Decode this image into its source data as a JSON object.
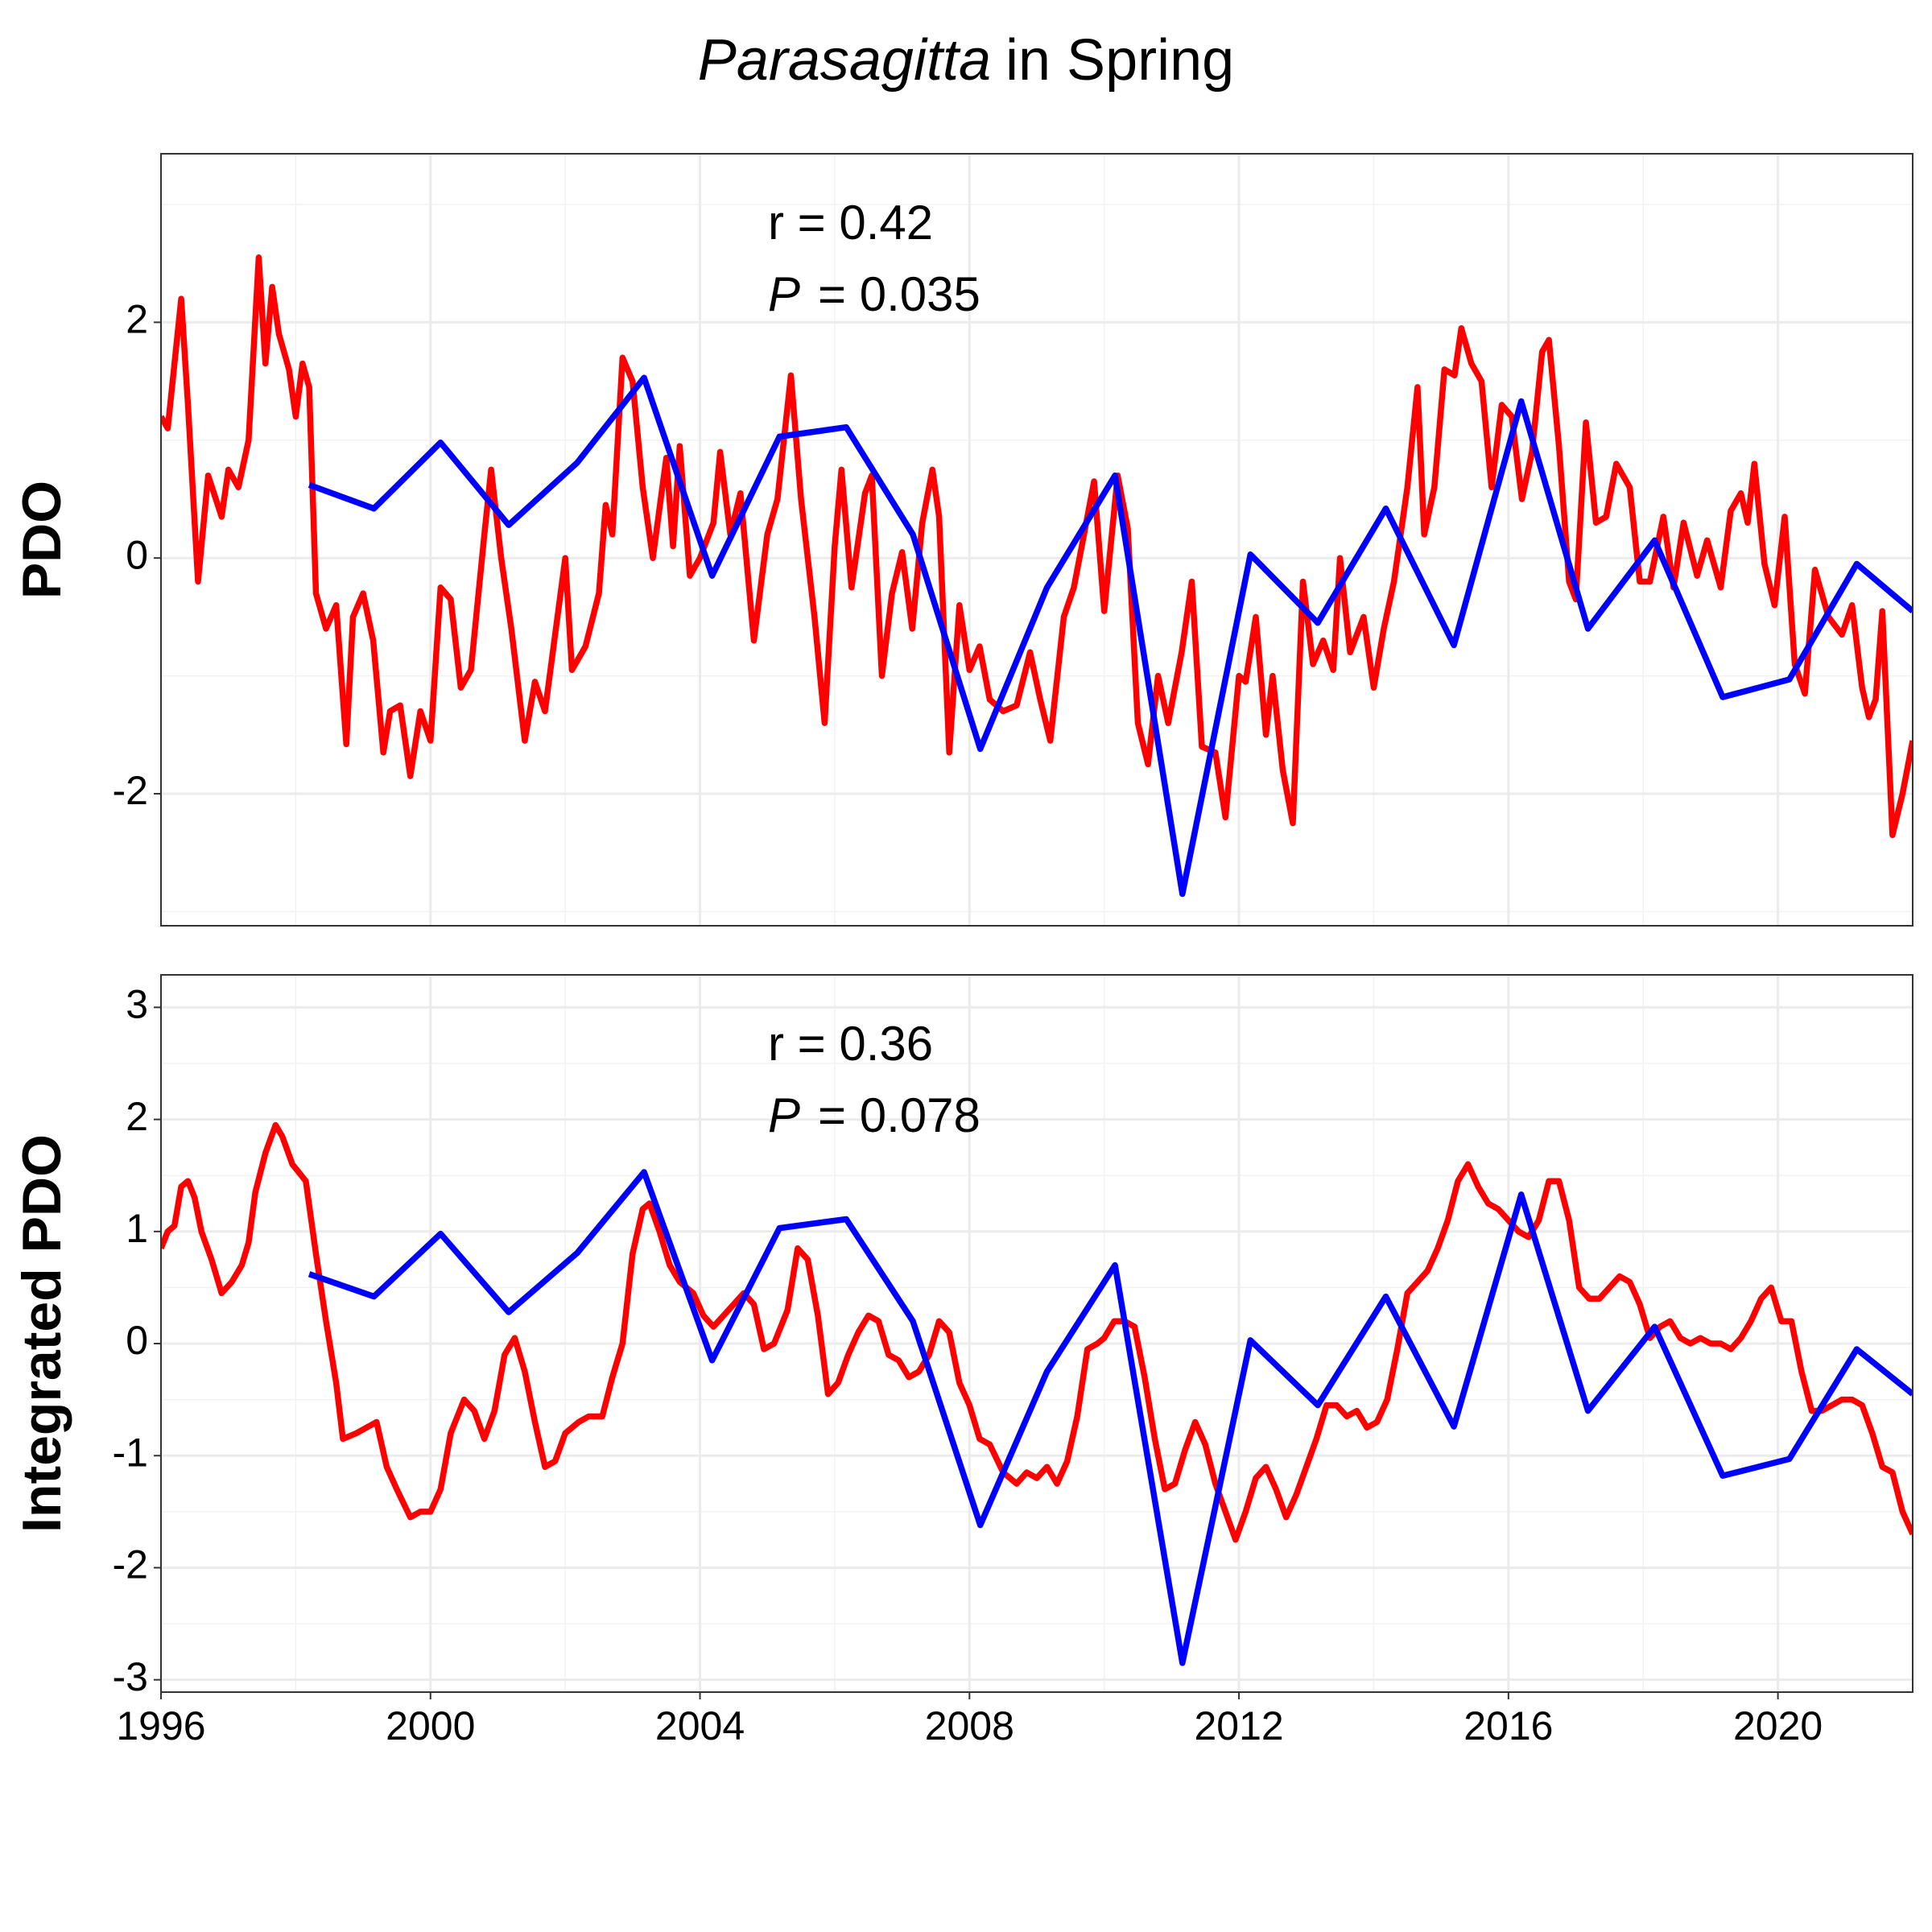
{
  "title": {
    "italic": "Parasagitta",
    "text": "in Spring"
  },
  "chart_data": [
    {
      "type": "line",
      "ylabel": "PDO",
      "xlim": [
        1996,
        2022
      ],
      "xticks": [
        1996,
        2000,
        2004,
        2008,
        2012,
        2016,
        2020
      ],
      "ylim": [
        -3.12,
        3.43
      ],
      "yticks": [
        -2,
        0,
        2
      ],
      "grid": true,
      "annotations": [
        {
          "text": "r = 0.42"
        },
        {
          "italic": "P",
          "text": "= 0.035"
        }
      ],
      "series": [
        {
          "color": "#ff0000",
          "x": [
            1996.0,
            1996.1,
            1996.3,
            1996.4,
            1996.55,
            1996.7,
            1996.9,
            1997.0,
            1997.15,
            1997.3,
            1997.45,
            1997.55,
            1997.65,
            1997.75,
            1997.9,
            1998.0,
            1998.1,
            1998.2,
            1998.3,
            1998.45,
            1998.6,
            1998.75,
            1998.85,
            1999.0,
            1999.15,
            1999.3,
            1999.4,
            1999.55,
            1999.7,
            1999.85,
            2000.0,
            2000.15,
            2000.3,
            2000.45,
            2000.6,
            2000.8,
            2000.9,
            2001.05,
            2001.2,
            2001.4,
            2001.55,
            2001.7,
            2001.85,
            2002.0,
            2002.1,
            2002.3,
            2002.5,
            2002.6,
            2002.7,
            2002.85,
            2003.0,
            2003.15,
            2003.3,
            2003.5,
            2003.6,
            2003.7,
            2003.85,
            2004.0,
            2004.2,
            2004.3,
            2004.45,
            2004.6,
            2004.8,
            2005.0,
            2005.15,
            2005.35,
            2005.5,
            2005.7,
            2005.85,
            2006.0,
            2006.1,
            2006.25,
            2006.45,
            2006.55,
            2006.7,
            2006.85,
            2007.0,
            2007.15,
            2007.3,
            2007.45,
            2007.55,
            2007.7,
            2007.85,
            2008.0,
            2008.15,
            2008.3,
            2008.5,
            2008.7,
            2008.9,
            2009.05,
            2009.2,
            2009.4,
            2009.55,
            2009.7,
            2009.85,
            2010.0,
            2010.2,
            2010.35,
            2010.5,
            2010.65,
            2010.8,
            2010.95,
            2011.15,
            2011.3,
            2011.45,
            2011.65,
            2011.8,
            2012.0,
            2012.1,
            2012.25,
            2012.4,
            2012.5,
            2012.65,
            2012.8,
            2012.95,
            2013.1,
            2013.25,
            2013.4,
            2013.5,
            2013.65,
            2013.85,
            2014.0,
            2014.15,
            2014.3,
            2014.5,
            2014.65,
            2014.75,
            2014.9,
            2015.05,
            2015.2,
            2015.3,
            2015.45,
            2015.6,
            2015.75,
            2015.9,
            2016.05,
            2016.2,
            2016.35,
            2016.5,
            2016.6,
            2016.75,
            2016.9,
            2017.0,
            2017.15,
            2017.3,
            2017.45,
            2017.6,
            2017.8,
            2017.95,
            2018.1,
            2018.3,
            2018.45,
            2018.6,
            2018.8,
            2018.95,
            2019.15,
            2019.3,
            2019.45,
            2019.55,
            2019.65,
            2019.8,
            2019.95,
            2020.1,
            2020.25,
            2020.4,
            2020.55,
            2020.75,
            2020.95,
            2021.1,
            2021.25,
            2021.35,
            2021.45,
            2021.55,
            2021.7,
            2021.85,
            2022.0
          ],
          "values": [
            1.2,
            1.1,
            2.2,
            1.3,
            -0.2,
            0.7,
            0.35,
            0.75,
            0.6,
            1.0,
            2.55,
            1.65,
            2.3,
            1.9,
            1.6,
            1.2,
            1.65,
            1.45,
            -0.3,
            -0.6,
            -0.4,
            -1.58,
            -0.5,
            -0.3,
            -0.7,
            -1.65,
            -1.3,
            -1.25,
            -1.85,
            -1.3,
            -1.55,
            -0.25,
            -0.35,
            -1.1,
            -0.95,
            0.2,
            0.75,
            0.0,
            -0.6,
            -1.55,
            -1.05,
            -1.3,
            -0.65,
            0.0,
            -0.95,
            -0.75,
            -0.3,
            0.45,
            0.2,
            1.7,
            1.5,
            0.6,
            0.0,
            0.85,
            0.1,
            0.95,
            -0.15,
            0.0,
            0.3,
            0.9,
            0.2,
            0.55,
            -0.7,
            0.2,
            0.5,
            1.55,
            0.5,
            -0.5,
            -1.4,
            0.1,
            0.75,
            -0.25,
            0.55,
            0.7,
            -1.0,
            -0.3,
            0.05,
            -0.6,
            0.3,
            0.75,
            0.35,
            -1.65,
            -0.4,
            -0.95,
            -0.75,
            -1.2,
            -1.3,
            -1.25,
            -0.8,
            -1.2,
            -1.55,
            -0.5,
            -0.25,
            0.2,
            0.65,
            -0.45,
            0.7,
            0.25,
            -1.4,
            -1.75,
            -1.0,
            -1.4,
            -0.8,
            -0.2,
            -1.6,
            -1.65,
            -2.2,
            -1.0,
            -1.05,
            -0.5,
            -1.5,
            -1.0,
            -1.8,
            -2.25,
            -0.2,
            -0.9,
            -0.7,
            -0.95,
            0.0,
            -0.8,
            -0.5,
            -1.1,
            -0.6,
            -0.2,
            0.6,
            1.45,
            0.2,
            0.6,
            1.6,
            1.55,
            1.95,
            1.65,
            1.5,
            0.6,
            1.3,
            1.2,
            0.5,
            0.9,
            1.75,
            1.85,
            0.95,
            -0.2,
            -0.35,
            1.15,
            0.3,
            0.35,
            0.8,
            0.6,
            -0.2,
            -0.2,
            0.35,
            -0.25,
            0.3,
            -0.15,
            0.15,
            -0.25,
            0.4,
            0.55,
            0.3,
            0.8,
            -0.05,
            -0.4,
            0.35,
            -0.9,
            -1.15,
            -0.1,
            -0.5,
            -0.65,
            -0.4,
            -1.1,
            -1.35,
            -1.2,
            -0.45,
            -2.35,
            -2.0,
            -1.55
          ]
        },
        {
          "color": "#0000ff",
          "x": [
            1998.2,
            1999.16,
            2000.15,
            2001.16,
            2002.18,
            2003.17,
            2004.18,
            2005.18,
            2006.17,
            2007.16,
            2008.16,
            2009.15,
            2010.16,
            2011.16,
            2012.17,
            2013.17,
            2014.18,
            2015.19,
            2016.19,
            2017.18,
            2018.17,
            2019.18,
            2020.17,
            2021.17,
            2022
          ],
          "values": [
            0.62,
            0.42,
            0.98,
            0.28,
            0.81,
            1.53,
            -0.15,
            1.03,
            1.11,
            0.2,
            -1.62,
            -0.25,
            0.7,
            -2.85,
            0.03,
            -0.55,
            0.42,
            -0.74,
            1.33,
            -0.6,
            0.15,
            -1.18,
            -1.03,
            -0.05,
            -0.45
          ]
        }
      ]
    },
    {
      "type": "line",
      "ylabel": "Integrated PDO",
      "xlim": [
        1996,
        2022
      ],
      "xticks": [
        1996,
        2000,
        2004,
        2008,
        2012,
        2016,
        2020
      ],
      "ylim": [
        -3.11,
        3.29
      ],
      "yticks": [
        -3,
        -2,
        -1,
        0,
        1,
        2,
        3
      ],
      "grid": true,
      "annotations": [
        {
          "text": "r = 0.36"
        },
        {
          "italic": "P",
          "text": "= 0.078"
        }
      ],
      "series": [
        {
          "color": "#ff0000",
          "x": [
            1996.0,
            1996.1,
            1996.2,
            1996.3,
            1996.4,
            1996.5,
            1996.6,
            1996.75,
            1996.9,
            1997.05,
            1997.2,
            1997.3,
            1997.4,
            1997.55,
            1997.7,
            1997.8,
            1997.95,
            1998.15,
            1998.3,
            1998.45,
            1998.6,
            1998.7,
            1998.9,
            1999.05,
            1999.2,
            1999.35,
            1999.5,
            1999.7,
            1999.85,
            2000.0,
            2000.15,
            2000.3,
            2000.5,
            2000.65,
            2000.8,
            2000.95,
            2001.1,
            2001.25,
            2001.4,
            2001.55,
            2001.7,
            2001.85,
            2002.0,
            2002.2,
            2002.35,
            2002.55,
            2002.7,
            2002.85,
            2003.0,
            2003.15,
            2003.25,
            2003.4,
            2003.55,
            2003.7,
            2003.9,
            2004.05,
            2004.2,
            2004.35,
            2004.5,
            2004.65,
            2004.8,
            2004.95,
            2005.1,
            2005.3,
            2005.45,
            2005.6,
            2005.75,
            2005.9,
            2006.05,
            2006.2,
            2006.35,
            2006.5,
            2006.65,
            2006.8,
            2006.95,
            2007.1,
            2007.25,
            2007.4,
            2007.55,
            2007.7,
            2007.85,
            2008.0,
            2008.15,
            2008.3,
            2008.5,
            2008.7,
            2008.85,
            2009.0,
            2009.15,
            2009.3,
            2009.45,
            2009.6,
            2009.75,
            2009.9,
            2010.0,
            2010.15,
            2010.3,
            2010.45,
            2010.6,
            2010.75,
            2010.9,
            2011.05,
            2011.2,
            2011.35,
            2011.5,
            2011.65,
            2011.8,
            2011.95,
            2012.1,
            2012.25,
            2012.4,
            2012.55,
            2012.7,
            2012.85,
            2013.0,
            2013.15,
            2013.3,
            2013.45,
            2013.6,
            2013.75,
            2013.9,
            2014.05,
            2014.2,
            2014.35,
            2014.5,
            2014.65,
            2014.8,
            2014.95,
            2015.1,
            2015.25,
            2015.4,
            2015.55,
            2015.7,
            2015.85,
            2016.0,
            2016.15,
            2016.3,
            2016.45,
            2016.6,
            2016.75,
            2016.9,
            2017.05,
            2017.2,
            2017.35,
            2017.5,
            2017.65,
            2017.8,
            2017.95,
            2018.1,
            2018.25,
            2018.4,
            2018.55,
            2018.7,
            2018.85,
            2019.0,
            2019.15,
            2019.3,
            2019.45,
            2019.6,
            2019.75,
            2019.9,
            2020.05,
            2020.2,
            2020.35,
            2020.5,
            2020.65,
            2020.8,
            2020.95,
            2021.1,
            2021.25,
            2021.4,
            2021.55,
            2021.7,
            2021.85,
            2022.0
          ],
          "values": [
            0.85,
            1.0,
            1.05,
            1.4,
            1.45,
            1.3,
            1.0,
            0.75,
            0.45,
            0.55,
            0.7,
            0.9,
            1.35,
            1.7,
            1.95,
            1.85,
            1.6,
            1.45,
            0.8,
            0.2,
            -0.35,
            -0.85,
            -0.8,
            -0.75,
            -0.7,
            -1.1,
            -1.3,
            -1.55,
            -1.5,
            -1.5,
            -1.3,
            -0.8,
            -0.5,
            -0.6,
            -0.85,
            -0.6,
            -0.1,
            0.05,
            -0.25,
            -0.7,
            -1.1,
            -1.05,
            -0.8,
            -0.7,
            -0.65,
            -0.65,
            -0.3,
            0.0,
            0.8,
            1.2,
            1.25,
            1.0,
            0.7,
            0.55,
            0.45,
            0.25,
            0.15,
            0.25,
            0.35,
            0.45,
            0.35,
            -0.05,
            0.0,
            0.3,
            0.85,
            0.75,
            0.25,
            -0.45,
            -0.35,
            -0.1,
            0.1,
            0.25,
            0.2,
            -0.1,
            -0.15,
            -0.3,
            -0.25,
            -0.1,
            0.2,
            0.1,
            -0.35,
            -0.55,
            -0.85,
            -0.9,
            -1.15,
            -1.25,
            -1.15,
            -1.2,
            -1.1,
            -1.25,
            -1.05,
            -0.65,
            -0.05,
            0.0,
            0.05,
            0.2,
            0.2,
            0.15,
            -0.3,
            -0.85,
            -1.3,
            -1.25,
            -0.95,
            -0.7,
            -0.9,
            -1.25,
            -1.5,
            -1.75,
            -1.5,
            -1.2,
            -1.1,
            -1.3,
            -1.55,
            -1.35,
            -1.1,
            -0.85,
            -0.55,
            -0.55,
            -0.65,
            -0.6,
            -0.75,
            -0.7,
            -0.5,
            -0.05,
            0.45,
            0.55,
            0.65,
            0.85,
            1.1,
            1.45,
            1.6,
            1.4,
            1.25,
            1.2,
            1.1,
            1.0,
            0.95,
            1.1,
            1.45,
            1.45,
            1.1,
            0.5,
            0.4,
            0.4,
            0.5,
            0.6,
            0.55,
            0.35,
            0.05,
            0.15,
            0.2,
            0.05,
            0.0,
            0.05,
            0.0,
            0.0,
            -0.05,
            0.05,
            0.2,
            0.4,
            0.5,
            0.2,
            0.2,
            -0.25,
            -0.6,
            -0.6,
            -0.55,
            -0.5,
            -0.5,
            -0.55,
            -0.8,
            -1.1,
            -1.15,
            -1.5,
            -1.7
          ]
        },
        {
          "color": "#0000ff",
          "x": [
            1998.2,
            1999.16,
            2000.15,
            2001.16,
            2002.18,
            2003.17,
            2004.18,
            2005.18,
            2006.17,
            2007.16,
            2008.16,
            2009.15,
            2010.16,
            2011.16,
            2012.17,
            2013.17,
            2014.18,
            2015.19,
            2016.19,
            2017.18,
            2018.17,
            2019.18,
            2020.17,
            2021.17,
            2022
          ],
          "values": [
            0.62,
            0.42,
            0.98,
            0.28,
            0.81,
            1.53,
            -0.15,
            1.03,
            1.11,
            0.2,
            -1.62,
            -0.25,
            0.7,
            -2.85,
            0.03,
            -0.55,
            0.42,
            -0.74,
            1.33,
            -0.6,
            0.15,
            -1.18,
            -1.03,
            -0.05,
            -0.45
          ]
        }
      ]
    }
  ]
}
